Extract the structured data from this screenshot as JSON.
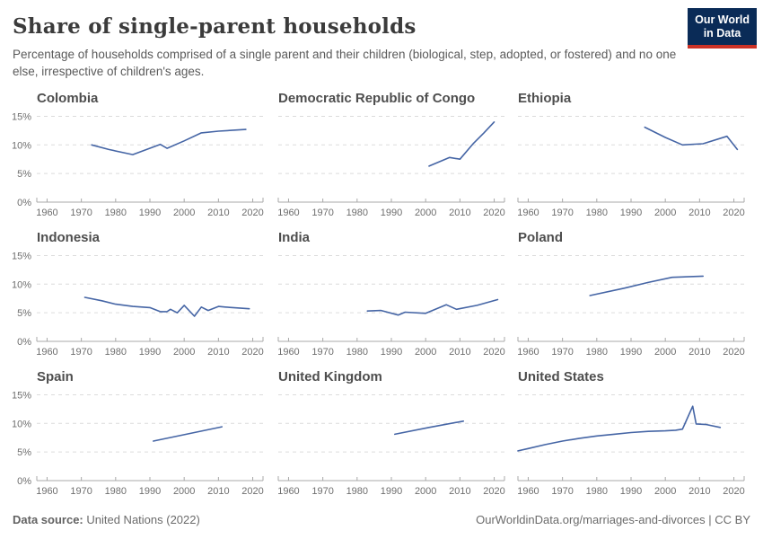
{
  "header": {
    "title": "Share of single-parent households",
    "subtitle": "Percentage of households comprised of a single parent and their children (biological, step, adopted, or fostered) and no one else, irrespective of children's ages.",
    "logo": {
      "line1": "Our World",
      "line2": "in Data"
    }
  },
  "footer": {
    "source_label": "Data source:",
    "source_value": " United Nations (2022)",
    "citation": "OurWorldinData.org/marriages-and-divorces | CC BY"
  },
  "colors": {
    "line": "#4565a5",
    "grid": "#dcdcdc",
    "axis": "#a8a8a8",
    "tick_label": "#6e6e6e",
    "chart_title": "#4e4e4e",
    "logo_bg": "#0a2b57",
    "logo_red": "#cc3226"
  },
  "chart_data": {
    "type": "line",
    "small_multiples": true,
    "title": "Share of single-parent households",
    "subtitle": "Percentage of households comprised of a single parent and their children (biological, step, adopted, or fostered) and no one else, irrespective of children's ages.",
    "xlabel": "",
    "ylabel": "",
    "grid": "dashed horizontal gridlines at 5%, 10%, 15%",
    "legend": "none",
    "x_range": [
      1957,
      2023
    ],
    "y_range": [
      0,
      16
    ],
    "x_ticks": [
      1960,
      1970,
      1980,
      1990,
      2000,
      2010,
      2020
    ],
    "y_ticks": [
      0,
      5,
      10,
      15
    ],
    "y_tick_suffix": "%",
    "charts": [
      {
        "name": "Colombia",
        "points": [
          [
            1973,
            10.0
          ],
          [
            1978,
            9.2
          ],
          [
            1985,
            8.3
          ],
          [
            1993,
            10.1
          ],
          [
            1995,
            9.4
          ],
          [
            2000,
            10.7
          ],
          [
            2005,
            12.1
          ],
          [
            2010,
            12.4
          ],
          [
            2018,
            12.7
          ]
        ]
      },
      {
        "name": "Democratic Republic of Congo",
        "points": [
          [
            2001,
            6.3
          ],
          [
            2007,
            7.8
          ],
          [
            2010,
            7.5
          ],
          [
            2014,
            10.3
          ],
          [
            2017,
            12.1
          ],
          [
            2020,
            14.0
          ]
        ]
      },
      {
        "name": "Ethiopia",
        "points": [
          [
            1994,
            13.1
          ],
          [
            2000,
            11.3
          ],
          [
            2005,
            10.0
          ],
          [
            2011,
            10.2
          ],
          [
            2018,
            11.5
          ],
          [
            2021,
            9.2
          ]
        ]
      },
      {
        "name": "Indonesia",
        "points": [
          [
            1971,
            7.7
          ],
          [
            1976,
            7.1
          ],
          [
            1980,
            6.5
          ],
          [
            1985,
            6.1
          ],
          [
            1990,
            5.9
          ],
          [
            1993,
            5.2
          ],
          [
            1995,
            5.2
          ],
          [
            1996,
            5.6
          ],
          [
            1998,
            5.0
          ],
          [
            2000,
            6.3
          ],
          [
            2003,
            4.4
          ],
          [
            2005,
            6.0
          ],
          [
            2007,
            5.4
          ],
          [
            2010,
            6.1
          ],
          [
            2012,
            6.0
          ],
          [
            2019,
            5.7
          ]
        ]
      },
      {
        "name": "India",
        "points": [
          [
            1983,
            5.3
          ],
          [
            1987,
            5.4
          ],
          [
            1992,
            4.6
          ],
          [
            1994,
            5.1
          ],
          [
            2000,
            4.9
          ],
          [
            2006,
            6.4
          ],
          [
            2009,
            5.6
          ],
          [
            2015,
            6.3
          ],
          [
            2021,
            7.3
          ]
        ]
      },
      {
        "name": "Poland",
        "points": [
          [
            1978,
            8.0
          ],
          [
            1988,
            9.3
          ],
          [
            1995,
            10.3
          ],
          [
            2002,
            11.2
          ],
          [
            2011,
            11.4
          ]
        ]
      },
      {
        "name": "Spain",
        "points": [
          [
            1991,
            6.9
          ],
          [
            2011,
            9.4
          ]
        ]
      },
      {
        "name": "United Kingdom",
        "points": [
          [
            1991,
            8.1
          ],
          [
            2001,
            9.3
          ],
          [
            2011,
            10.4
          ]
        ]
      },
      {
        "name": "United States",
        "points": [
          [
            1957,
            5.2
          ],
          [
            1960,
            5.6
          ],
          [
            1965,
            6.3
          ],
          [
            1970,
            6.9
          ],
          [
            1975,
            7.4
          ],
          [
            1980,
            7.8
          ],
          [
            1985,
            8.1
          ],
          [
            1990,
            8.4
          ],
          [
            1995,
            8.6
          ],
          [
            2000,
            8.7
          ],
          [
            2003,
            8.8
          ],
          [
            2005,
            9.0
          ],
          [
            2008,
            13.0
          ],
          [
            2009,
            9.9
          ],
          [
            2012,
            9.8
          ],
          [
            2016,
            9.3
          ]
        ]
      }
    ]
  }
}
